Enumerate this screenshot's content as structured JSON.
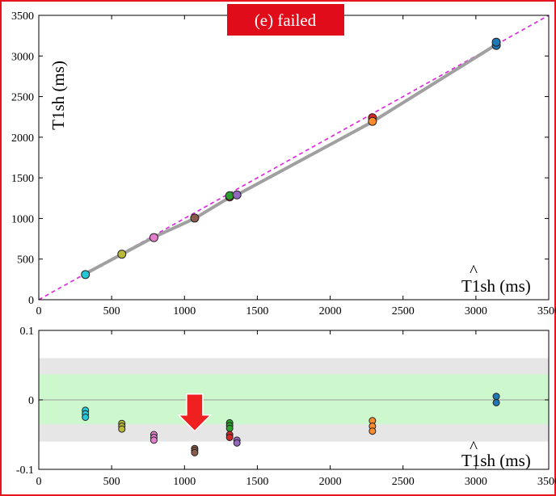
{
  "title": "(e) failed",
  "colors": {
    "frame_border": "#e8141f",
    "title_bg": "#e00c1a",
    "title_text": "#ffffff",
    "identity_line": "#e020e0",
    "fit_line": "#a0a0a0",
    "band_outer": "#e6e6e6",
    "band_inner": "#cdf7cd",
    "arrow": "#ee2020"
  },
  "chart_data": [
    {
      "type": "scatter",
      "panel": "top",
      "ylabel": "T1sh (ms)",
      "xlabel": "T1sh (ms)",
      "xlabel_hat": "^",
      "xlim": [
        0,
        3500
      ],
      "ylim": [
        0,
        3500
      ],
      "xticks": [
        "0",
        "500",
        "1000",
        "1500",
        "2000",
        "2500",
        "3000",
        "3500"
      ],
      "yticks": [
        "0",
        "500",
        "1000",
        "1500",
        "2000",
        "2500",
        "3000",
        "3500"
      ],
      "identity_line": true,
      "fit_line": {
        "x": [
          320,
          570,
          790,
          1070,
          1310,
          1360,
          2290,
          3140
        ],
        "y": [
          320,
          560,
          770,
          1000,
          1260,
          1290,
          2190,
          3140
        ]
      },
      "points": [
        {
          "x": 320,
          "y": 310,
          "color": "#26c6d6"
        },
        {
          "x": 570,
          "y": 560,
          "color": "#b8b83a"
        },
        {
          "x": 790,
          "y": 765,
          "color": "#e37fcd"
        },
        {
          "x": 1070,
          "y": 1005,
          "color": "#8b5a4a"
        },
        {
          "x": 1310,
          "y": 1265,
          "color": "#d62728"
        },
        {
          "x": 1310,
          "y": 1280,
          "color": "#2ca02c"
        },
        {
          "x": 1360,
          "y": 1290,
          "color": "#9467bd"
        },
        {
          "x": 2290,
          "y": 2240,
          "color": "#d62728"
        },
        {
          "x": 2290,
          "y": 2195,
          "color": "#ff8c2a"
        },
        {
          "x": 3140,
          "y": 3130,
          "color": "#1f77b4"
        },
        {
          "x": 3140,
          "y": 3170,
          "color": "#1f77b4"
        }
      ]
    },
    {
      "type": "scatter",
      "panel": "bottom",
      "xlabel": "T1sh (ms)",
      "xlabel_hat": "^",
      "xlim": [
        0,
        3500
      ],
      "ylim": [
        -0.1,
        0.1
      ],
      "xticks": [
        "0",
        "500",
        "1000",
        "1500",
        "2000",
        "2500",
        "3000",
        "3500"
      ],
      "yticks": [
        "0.1",
        "0",
        "-0.1"
      ],
      "ytick_values": [
        0.1,
        0,
        -0.1
      ],
      "bands": {
        "outer": [
          -0.06,
          0.06
        ],
        "inner": [
          -0.035,
          0.037
        ]
      },
      "zero_line": true,
      "arrow_at": {
        "x": 1070,
        "y": -0.045
      },
      "points": [
        {
          "x": 320,
          "y": -0.015,
          "color": "#26c6d6"
        },
        {
          "x": 320,
          "y": -0.02,
          "color": "#26c6d6"
        },
        {
          "x": 320,
          "y": -0.025,
          "color": "#26c6d6"
        },
        {
          "x": 570,
          "y": -0.034,
          "color": "#b8b83a"
        },
        {
          "x": 570,
          "y": -0.038,
          "color": "#b8b83a"
        },
        {
          "x": 570,
          "y": -0.042,
          "color": "#b8b83a"
        },
        {
          "x": 790,
          "y": -0.05,
          "color": "#e37fcd"
        },
        {
          "x": 790,
          "y": -0.054,
          "color": "#e37fcd"
        },
        {
          "x": 790,
          "y": -0.058,
          "color": "#e37fcd"
        },
        {
          "x": 1070,
          "y": -0.07,
          "color": "#8b5a4a"
        },
        {
          "x": 1070,
          "y": -0.073,
          "color": "#8b5a4a"
        },
        {
          "x": 1070,
          "y": -0.076,
          "color": "#8b5a4a"
        },
        {
          "x": 1310,
          "y": -0.033,
          "color": "#2ca02c"
        },
        {
          "x": 1310,
          "y": -0.037,
          "color": "#2ca02c"
        },
        {
          "x": 1310,
          "y": -0.041,
          "color": "#2ca02c"
        },
        {
          "x": 1310,
          "y": -0.05,
          "color": "#d62728"
        },
        {
          "x": 1310,
          "y": -0.054,
          "color": "#d62728"
        },
        {
          "x": 1360,
          "y": -0.058,
          "color": "#9467bd"
        },
        {
          "x": 1360,
          "y": -0.062,
          "color": "#9467bd"
        },
        {
          "x": 2290,
          "y": -0.03,
          "color": "#ff8c2a"
        },
        {
          "x": 2290,
          "y": -0.038,
          "color": "#ff8c2a"
        },
        {
          "x": 2290,
          "y": -0.045,
          "color": "#ff8c2a"
        },
        {
          "x": 3140,
          "y": 0.005,
          "color": "#1f77b4"
        },
        {
          "x": 3140,
          "y": -0.004,
          "color": "#1f77b4"
        }
      ]
    }
  ]
}
